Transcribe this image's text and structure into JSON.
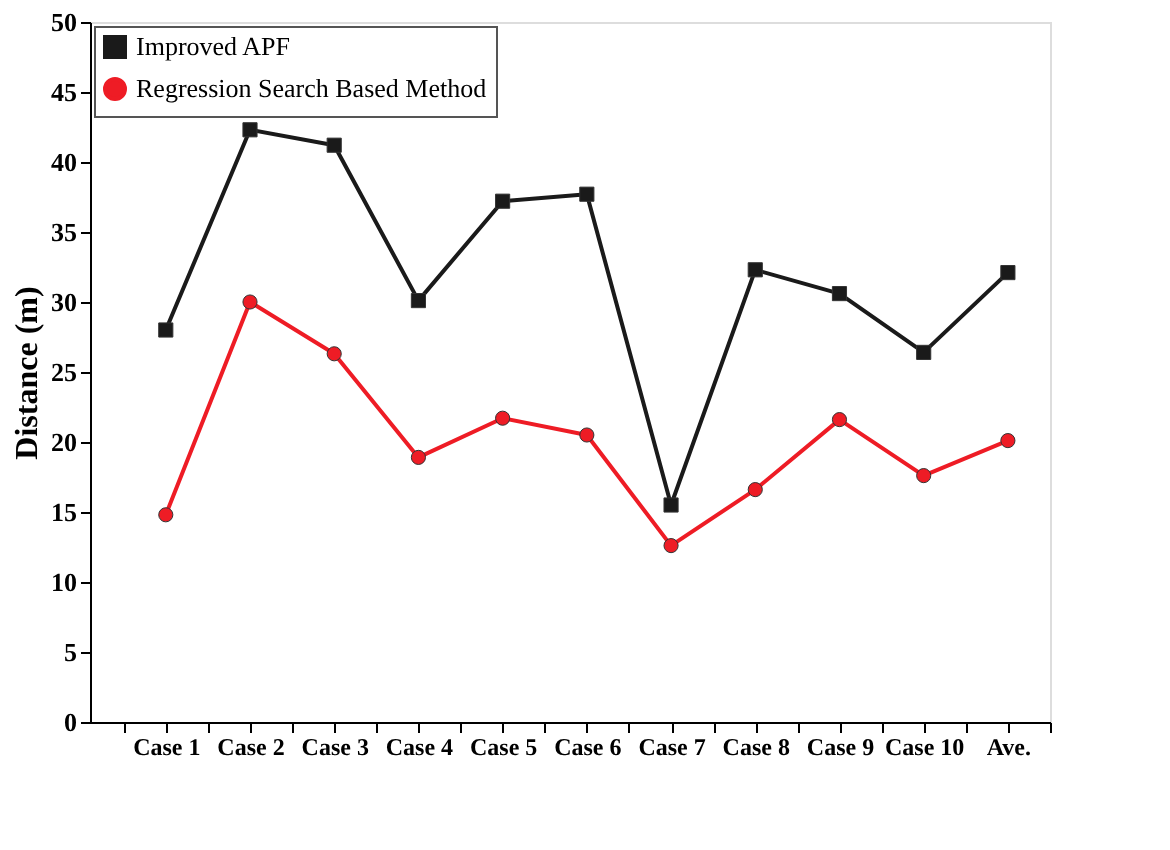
{
  "chart_data": {
    "type": "line",
    "ylabel": "Distance (m)",
    "categories": [
      "Case 1",
      "Case 2",
      "Case 3",
      "Case 4",
      "Case 5",
      "Case 6",
      "Case 7",
      "Case 8",
      "Case 9",
      "Case 10",
      "Ave."
    ],
    "series": [
      {
        "name": "Improved APF",
        "color": "#1a1a1a",
        "marker": "square",
        "values": [
          28.0,
          42.3,
          41.2,
          30.1,
          37.2,
          37.7,
          15.5,
          32.3,
          30.6,
          26.4,
          32.1
        ]
      },
      {
        "name": "Regression Search Based Method",
        "color": "#ee1c25",
        "marker": "circle",
        "values": [
          14.8,
          30.0,
          26.3,
          18.9,
          21.7,
          20.5,
          12.6,
          16.6,
          21.6,
          17.6,
          20.1
        ]
      }
    ],
    "ylim": [
      0,
      50
    ],
    "yticks": [
      0,
      5,
      10,
      15,
      20,
      25,
      30,
      35,
      40,
      45,
      50
    ],
    "grid": false,
    "legend": "top left",
    "line_style": "solid"
  }
}
